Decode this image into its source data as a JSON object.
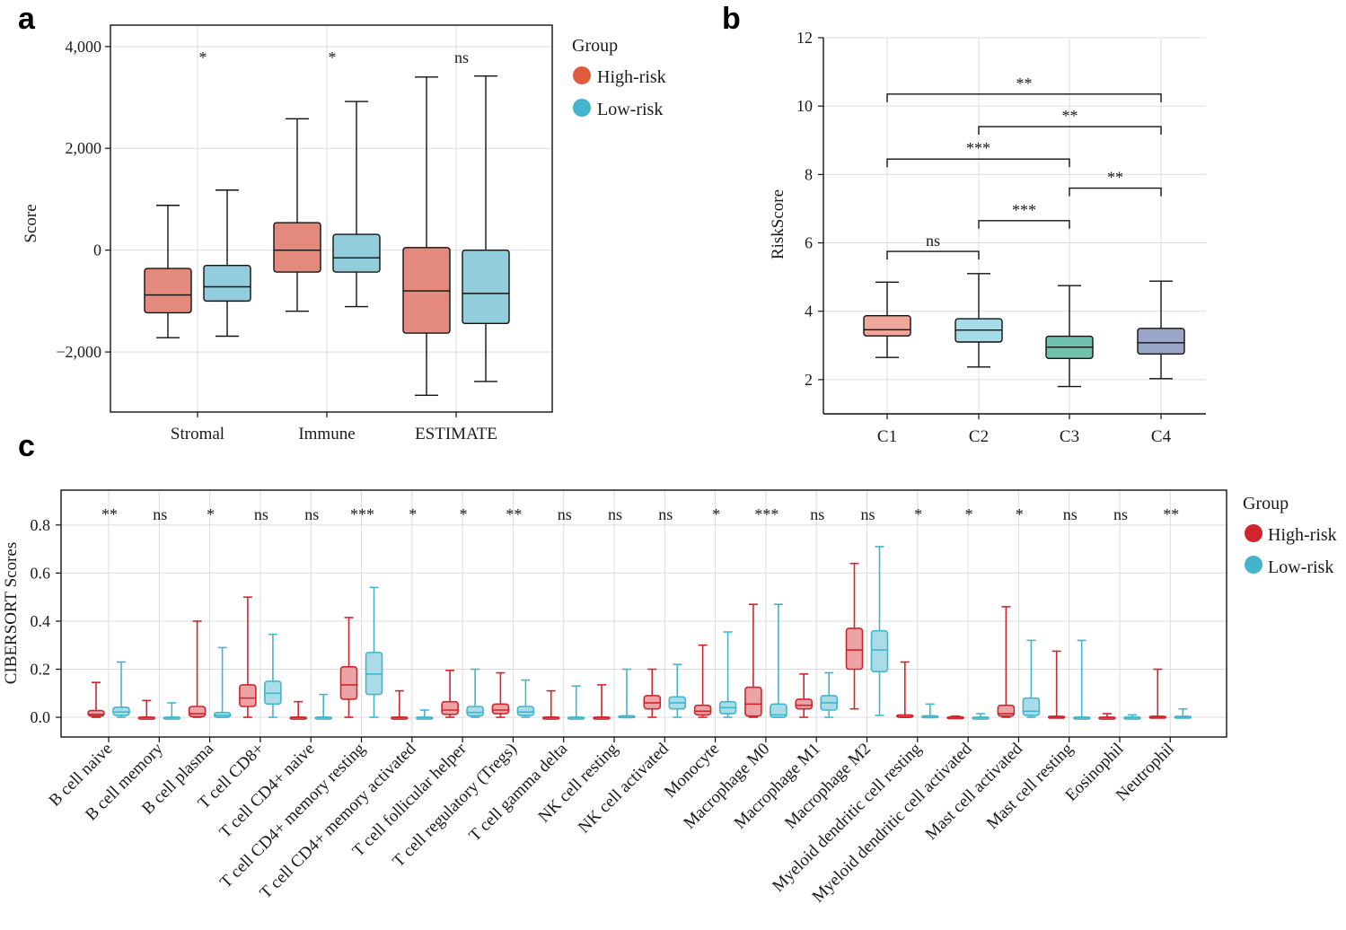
{
  "colors": {
    "a_high": "#E38A7C",
    "a_low": "#92CDDC",
    "b_c1": "#EFA79B",
    "b_c2": "#A6DBE8",
    "b_c3": "#6FC3AE",
    "b_c4": "#9AA6C6",
    "c_high": "#D2242C",
    "c_low": "#44B4CC",
    "legend_a_high": "#E05A3C",
    "legend_a_low": "#43B4CF",
    "legend_c_high": "#D2242C",
    "legend_c_low": "#44B4CC"
  },
  "chart_data": [
    {
      "panel": "a",
      "type": "box",
      "ylabel": "Score",
      "yticks": [
        4000,
        2000,
        0,
        -2000
      ],
      "ytick_labels": [
        "4,000",
        "2,000",
        "0",
        "−2,000"
      ],
      "ylim": [
        -3180,
        4420
      ],
      "categories": [
        "Stromal",
        "Immune",
        "ESTIMATE"
      ],
      "legend": {
        "title": "Group",
        "items": [
          "High-risk",
          "Low-risk"
        ]
      },
      "significance": [
        "*",
        "*",
        "ns"
      ],
      "series": [
        {
          "name": "High-risk",
          "boxes": [
            {
              "min": -1720,
              "q1": -1230,
              "median": -880,
              "q3": -360,
              "max": 880
            },
            {
              "min": -1200,
              "q1": -430,
              "median": 0,
              "q3": 540,
              "max": 2580
            },
            {
              "min": -2850,
              "q1": -1630,
              "median": -800,
              "q3": 50,
              "max": 3400
            }
          ]
        },
        {
          "name": "Low-risk",
          "boxes": [
            {
              "min": -1690,
              "q1": -1000,
              "median": -720,
              "q3": -300,
              "max": 1180
            },
            {
              "min": -1110,
              "q1": -430,
              "median": -150,
              "q3": 310,
              "max": 2920
            },
            {
              "min": -2580,
              "q1": -1440,
              "median": -850,
              "q3": 0,
              "max": 3420
            }
          ]
        }
      ]
    },
    {
      "panel": "b",
      "type": "box",
      "ylabel": "RiskScore",
      "yticks": [
        2,
        4,
        6,
        8,
        10,
        12
      ],
      "ytick_labels": [
        "2",
        "4",
        "6",
        "8",
        "10",
        "12"
      ],
      "ylim": [
        1,
        12
      ],
      "categories": [
        "C1",
        "C2",
        "C3",
        "C4"
      ],
      "boxes": [
        {
          "min": 2.65,
          "q1": 3.28,
          "median": 3.46,
          "q3": 3.87,
          "max": 4.85
        },
        {
          "min": 2.37,
          "q1": 3.1,
          "median": 3.45,
          "q3": 3.78,
          "max": 5.1
        },
        {
          "min": 1.8,
          "q1": 2.62,
          "median": 2.95,
          "q3": 3.27,
          "max": 4.75
        },
        {
          "min": 2.03,
          "q1": 2.75,
          "median": 3.08,
          "q3": 3.5,
          "max": 4.88
        }
      ],
      "brackets": [
        {
          "from": 0,
          "to": 1,
          "y": 5.75,
          "label": "ns"
        },
        {
          "from": 1,
          "to": 2,
          "y": 6.65,
          "label": "***"
        },
        {
          "from": 2,
          "to": 3,
          "y": 7.6,
          "label": "**"
        },
        {
          "from": 0,
          "to": 2,
          "y": 8.45,
          "label": "***"
        },
        {
          "from": 1,
          "to": 3,
          "y": 9.4,
          "label": "**"
        },
        {
          "from": 0,
          "to": 3,
          "y": 10.35,
          "label": "**"
        }
      ]
    },
    {
      "panel": "c",
      "type": "box",
      "ylabel": "CIBERSORT Scores",
      "yticks": [
        0.0,
        0.2,
        0.4,
        0.6,
        0.8
      ],
      "ytick_labels": [
        "0.0",
        "0.2",
        "0.4",
        "0.6",
        "0.8"
      ],
      "ylim": [
        -0.082,
        0.945
      ],
      "legend": {
        "title": "Group",
        "items": [
          "High-risk",
          "Low-risk"
        ]
      },
      "categories": [
        "B cell naive",
        "B cell memory",
        "B cell plasma",
        "T cell CD8+",
        "T cell CD4+ naive",
        "T cell CD4+ memory resting",
        "T cell CD4+ memory activated",
        "T cell follicular helper",
        "T cell regulatory (Tregs)",
        "T cell gamma delta",
        "NK cell resting",
        "NK cell activated",
        "Monocyte",
        "Macrophage M0",
        "Macrophage M1",
        "Macrophage M2",
        "Myeloid dendritic cell resting",
        "Myeloid dendritic cell activated",
        "Mast cell activated",
        "Mast cell resting",
        "Eosinophil",
        "Neutrophil"
      ],
      "significance": [
        "**",
        "ns",
        "*",
        "ns",
        "ns",
        "***",
        "*",
        "*",
        "**",
        "ns",
        "ns",
        "ns",
        "*",
        "***",
        "ns",
        "ns",
        "*",
        "*",
        "*",
        "ns",
        "ns",
        "**"
      ],
      "series": [
        {
          "name": "High-risk",
          "boxes": [
            {
              "min": 0,
              "q1": 0.005,
              "median": 0.012,
              "q3": 0.028,
              "max": 0.145
            },
            {
              "min": 0,
              "q1": 0,
              "median": 0,
              "q3": 0,
              "max": 0.07
            },
            {
              "min": 0,
              "q1": 0.003,
              "median": 0.015,
              "q3": 0.045,
              "max": 0.4
            },
            {
              "min": 0,
              "q1": 0.045,
              "median": 0.08,
              "q3": 0.135,
              "max": 0.5
            },
            {
              "min": 0,
              "q1": 0,
              "median": 0,
              "q3": 0,
              "max": 0.065
            },
            {
              "min": 0,
              "q1": 0.075,
              "median": 0.135,
              "q3": 0.21,
              "max": 0.415
            },
            {
              "min": 0,
              "q1": 0,
              "median": 0,
              "q3": 0,
              "max": 0.11
            },
            {
              "min": 0,
              "q1": 0.012,
              "median": 0.03,
              "q3": 0.065,
              "max": 0.195
            },
            {
              "min": 0,
              "q1": 0.015,
              "median": 0.03,
              "q3": 0.055,
              "max": 0.185
            },
            {
              "min": 0,
              "q1": 0,
              "median": 0,
              "q3": 0,
              "max": 0.11
            },
            {
              "min": 0,
              "q1": 0,
              "median": 0,
              "q3": 0,
              "max": 0.135
            },
            {
              "min": 0,
              "q1": 0.035,
              "median": 0.06,
              "q3": 0.09,
              "max": 0.2
            },
            {
              "min": 0,
              "q1": 0.01,
              "median": 0.025,
              "q3": 0.05,
              "max": 0.3
            },
            {
              "min": 0,
              "q1": 0.005,
              "median": 0.055,
              "q3": 0.125,
              "max": 0.47
            },
            {
              "min": 0,
              "q1": 0.035,
              "median": 0.05,
              "q3": 0.075,
              "max": 0.18
            },
            {
              "min": 0.035,
              "q1": 0.2,
              "median": 0.28,
              "q3": 0.37,
              "max": 0.64
            },
            {
              "min": 0,
              "q1": 0,
              "median": 0.003,
              "q3": 0.01,
              "max": 0.23
            },
            {
              "min": 0,
              "q1": 0,
              "median": 0,
              "q3": 0.002,
              "max": 0.005
            },
            {
              "min": 0,
              "q1": 0.005,
              "median": 0.015,
              "q3": 0.05,
              "max": 0.46
            },
            {
              "min": 0,
              "q1": 0,
              "median": 0,
              "q3": 0.004,
              "max": 0.275
            },
            {
              "min": 0,
              "q1": 0,
              "median": 0,
              "q3": 0,
              "max": 0.015
            },
            {
              "min": 0,
              "q1": 0,
              "median": 0,
              "q3": 0.004,
              "max": 0.2
            }
          ]
        },
        {
          "name": "Low-risk",
          "boxes": [
            {
              "min": 0,
              "q1": 0.008,
              "median": 0.022,
              "q3": 0.042,
              "max": 0.23
            },
            {
              "min": 0,
              "q1": 0,
              "median": 0,
              "q3": 0,
              "max": 0.06
            },
            {
              "min": 0,
              "q1": 0,
              "median": 0.008,
              "q3": 0.02,
              "max": 0.29
            },
            {
              "min": 0,
              "q1": 0.055,
              "median": 0.1,
              "q3": 0.15,
              "max": 0.345
            },
            {
              "min": 0,
              "q1": 0,
              "median": 0,
              "q3": 0,
              "max": 0.095
            },
            {
              "min": 0,
              "q1": 0.095,
              "median": 0.18,
              "q3": 0.27,
              "max": 0.54
            },
            {
              "min": 0,
              "q1": 0,
              "median": 0,
              "q3": 0,
              "max": 0.03
            },
            {
              "min": 0,
              "q1": 0.006,
              "median": 0.02,
              "q3": 0.045,
              "max": 0.2
            },
            {
              "min": 0,
              "q1": 0.008,
              "median": 0.022,
              "q3": 0.045,
              "max": 0.155
            },
            {
              "min": 0,
              "q1": 0,
              "median": 0,
              "q3": 0,
              "max": 0.13
            },
            {
              "min": 0,
              "q1": 0,
              "median": 0,
              "q3": 0.006,
              "max": 0.2
            },
            {
              "min": 0,
              "q1": 0.035,
              "median": 0.06,
              "q3": 0.085,
              "max": 0.22
            },
            {
              "min": 0,
              "q1": 0.015,
              "median": 0.04,
              "q3": 0.065,
              "max": 0.355
            },
            {
              "min": 0,
              "q1": 0,
              "median": 0.01,
              "q3": 0.055,
              "max": 0.47
            },
            {
              "min": 0,
              "q1": 0.03,
              "median": 0.06,
              "q3": 0.09,
              "max": 0.185
            },
            {
              "min": 0.008,
              "q1": 0.19,
              "median": 0.28,
              "q3": 0.36,
              "max": 0.71
            },
            {
              "min": 0,
              "q1": 0,
              "median": 0,
              "q3": 0.006,
              "max": 0.055
            },
            {
              "min": 0,
              "q1": 0,
              "median": 0,
              "q3": 0,
              "max": 0.015
            },
            {
              "min": 0,
              "q1": 0.008,
              "median": 0.025,
              "q3": 0.08,
              "max": 0.32
            },
            {
              "min": 0,
              "q1": 0,
              "median": 0,
              "q3": 0,
              "max": 0.32
            },
            {
              "min": 0,
              "q1": 0,
              "median": 0,
              "q3": 0,
              "max": 0.01
            },
            {
              "min": 0,
              "q1": 0,
              "median": 0,
              "q3": 0.004,
              "max": 0.035
            }
          ]
        }
      ]
    }
  ],
  "panel_labels": [
    "a",
    "b",
    "c"
  ]
}
